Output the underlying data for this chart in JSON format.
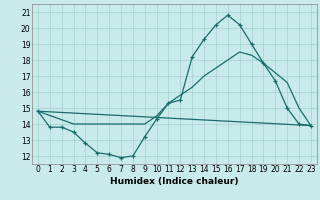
{
  "title": "",
  "xlabel": "Humidex (Indice chaleur)",
  "xlim": [
    -0.5,
    23.5
  ],
  "ylim": [
    11.5,
    21.5
  ],
  "xticks": [
    0,
    1,
    2,
    3,
    4,
    5,
    6,
    7,
    8,
    9,
    10,
    11,
    12,
    13,
    14,
    15,
    16,
    17,
    18,
    19,
    20,
    21,
    22,
    23
  ],
  "yticks": [
    12,
    13,
    14,
    15,
    16,
    17,
    18,
    19,
    20,
    21
  ],
  "bg_color": "#c8eaea",
  "grid_color": "#aed4d4",
  "line_color": "#1a6b6b",
  "line1_x": [
    0,
    1,
    2,
    3,
    4,
    5,
    6,
    7,
    8,
    9,
    10,
    11,
    12,
    13,
    14,
    15,
    16,
    17,
    18,
    19,
    20,
    21,
    22,
    23
  ],
  "line1_y": [
    14.8,
    13.8,
    13.8,
    13.5,
    12.8,
    12.2,
    12.1,
    11.9,
    12.0,
    13.2,
    14.3,
    15.3,
    15.5,
    18.2,
    19.3,
    20.2,
    20.8,
    20.2,
    19.0,
    17.8,
    16.7,
    15.0,
    14.0,
    13.9
  ],
  "line2_x": [
    0,
    23
  ],
  "line2_y": [
    14.8,
    13.9
  ],
  "line3_x": [
    0,
    3,
    9,
    10,
    11,
    12,
    13,
    14,
    15,
    16,
    17,
    18,
    19,
    20,
    21,
    22,
    23
  ],
  "line3_y": [
    14.8,
    14.0,
    14.0,
    14.5,
    15.3,
    15.8,
    16.3,
    17.0,
    17.5,
    18.0,
    18.5,
    18.3,
    17.8,
    17.2,
    16.6,
    15.0,
    13.9
  ]
}
